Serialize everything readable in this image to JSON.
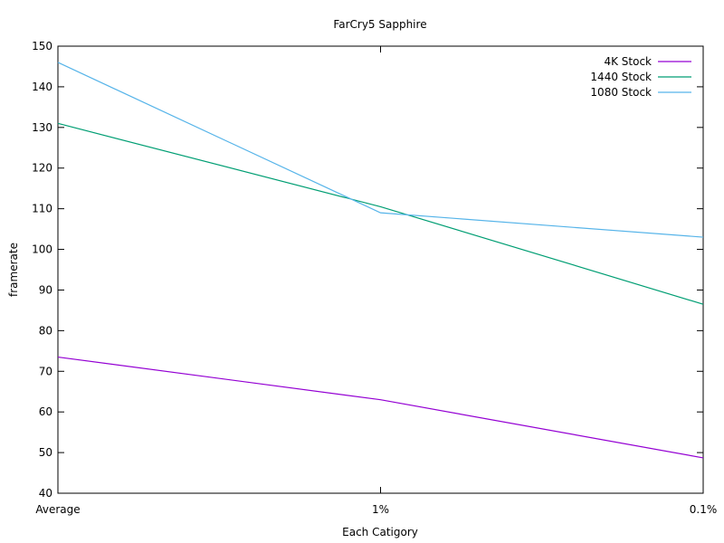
{
  "chart_data": {
    "type": "line",
    "title": "FarCry5 Sapphire",
    "xlabel": "Each Catigory",
    "ylabel": "framerate",
    "categories": [
      "Average",
      "1%",
      "0.1%"
    ],
    "ylim": [
      40,
      150
    ],
    "yticks": [
      40,
      50,
      60,
      70,
      80,
      90,
      100,
      110,
      120,
      130,
      140,
      150
    ],
    "grid": false,
    "legend_position": "top-right",
    "series": [
      {
        "name": "4K Stock",
        "color": "#9400d3",
        "values": [
          73.5,
          63,
          48.7
        ]
      },
      {
        "name": "1440 Stock",
        "color": "#009e73",
        "values": [
          131,
          110.5,
          86.5
        ]
      },
      {
        "name": "1080 Stock",
        "color": "#56b4e9",
        "values": [
          146,
          109,
          103
        ]
      }
    ]
  }
}
